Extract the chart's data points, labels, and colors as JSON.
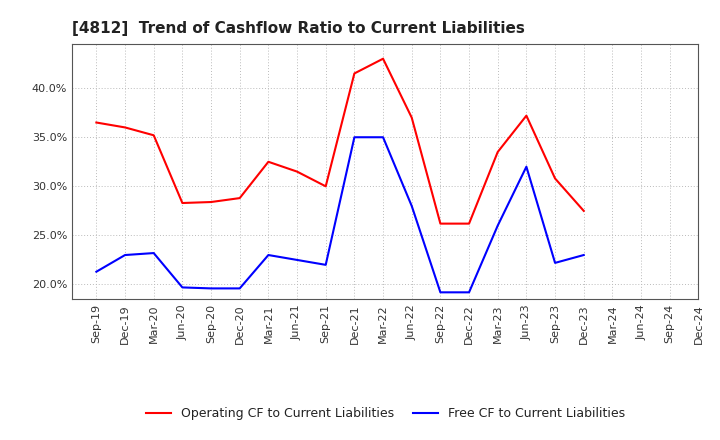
{
  "title": "[4812]  Trend of Cashflow Ratio to Current Liabilities",
  "x_labels": [
    "Sep-19",
    "Dec-19",
    "Mar-20",
    "Jun-20",
    "Sep-20",
    "Dec-20",
    "Mar-21",
    "Jun-21",
    "Sep-21",
    "Dec-21",
    "Mar-22",
    "Jun-22",
    "Sep-22",
    "Dec-22",
    "Mar-23",
    "Jun-23",
    "Sep-23",
    "Dec-23",
    "Mar-24",
    "Jun-24",
    "Sep-24",
    "Dec-24"
  ],
  "operating_cf": [
    0.365,
    0.36,
    0.352,
    0.283,
    0.284,
    0.288,
    0.325,
    0.315,
    0.3,
    0.415,
    0.43,
    0.37,
    0.262,
    0.262,
    0.335,
    0.372,
    0.308,
    0.275,
    null,
    null,
    null,
    null
  ],
  "free_cf": [
    0.213,
    0.23,
    0.232,
    0.197,
    0.196,
    0.196,
    0.23,
    0.225,
    0.22,
    0.35,
    0.35,
    0.28,
    0.192,
    0.192,
    0.26,
    0.32,
    0.222,
    0.23,
    null,
    null,
    null,
    null
  ],
  "ylim": [
    0.185,
    0.445
  ],
  "yticks": [
    0.2,
    0.25,
    0.3,
    0.35,
    0.4
  ],
  "operating_color": "#FF0000",
  "free_color": "#0000FF",
  "background_color": "#FFFFFF",
  "grid_color": "#BBBBBB",
  "title_fontsize": 11,
  "legend_fontsize": 9,
  "tick_fontsize": 8
}
